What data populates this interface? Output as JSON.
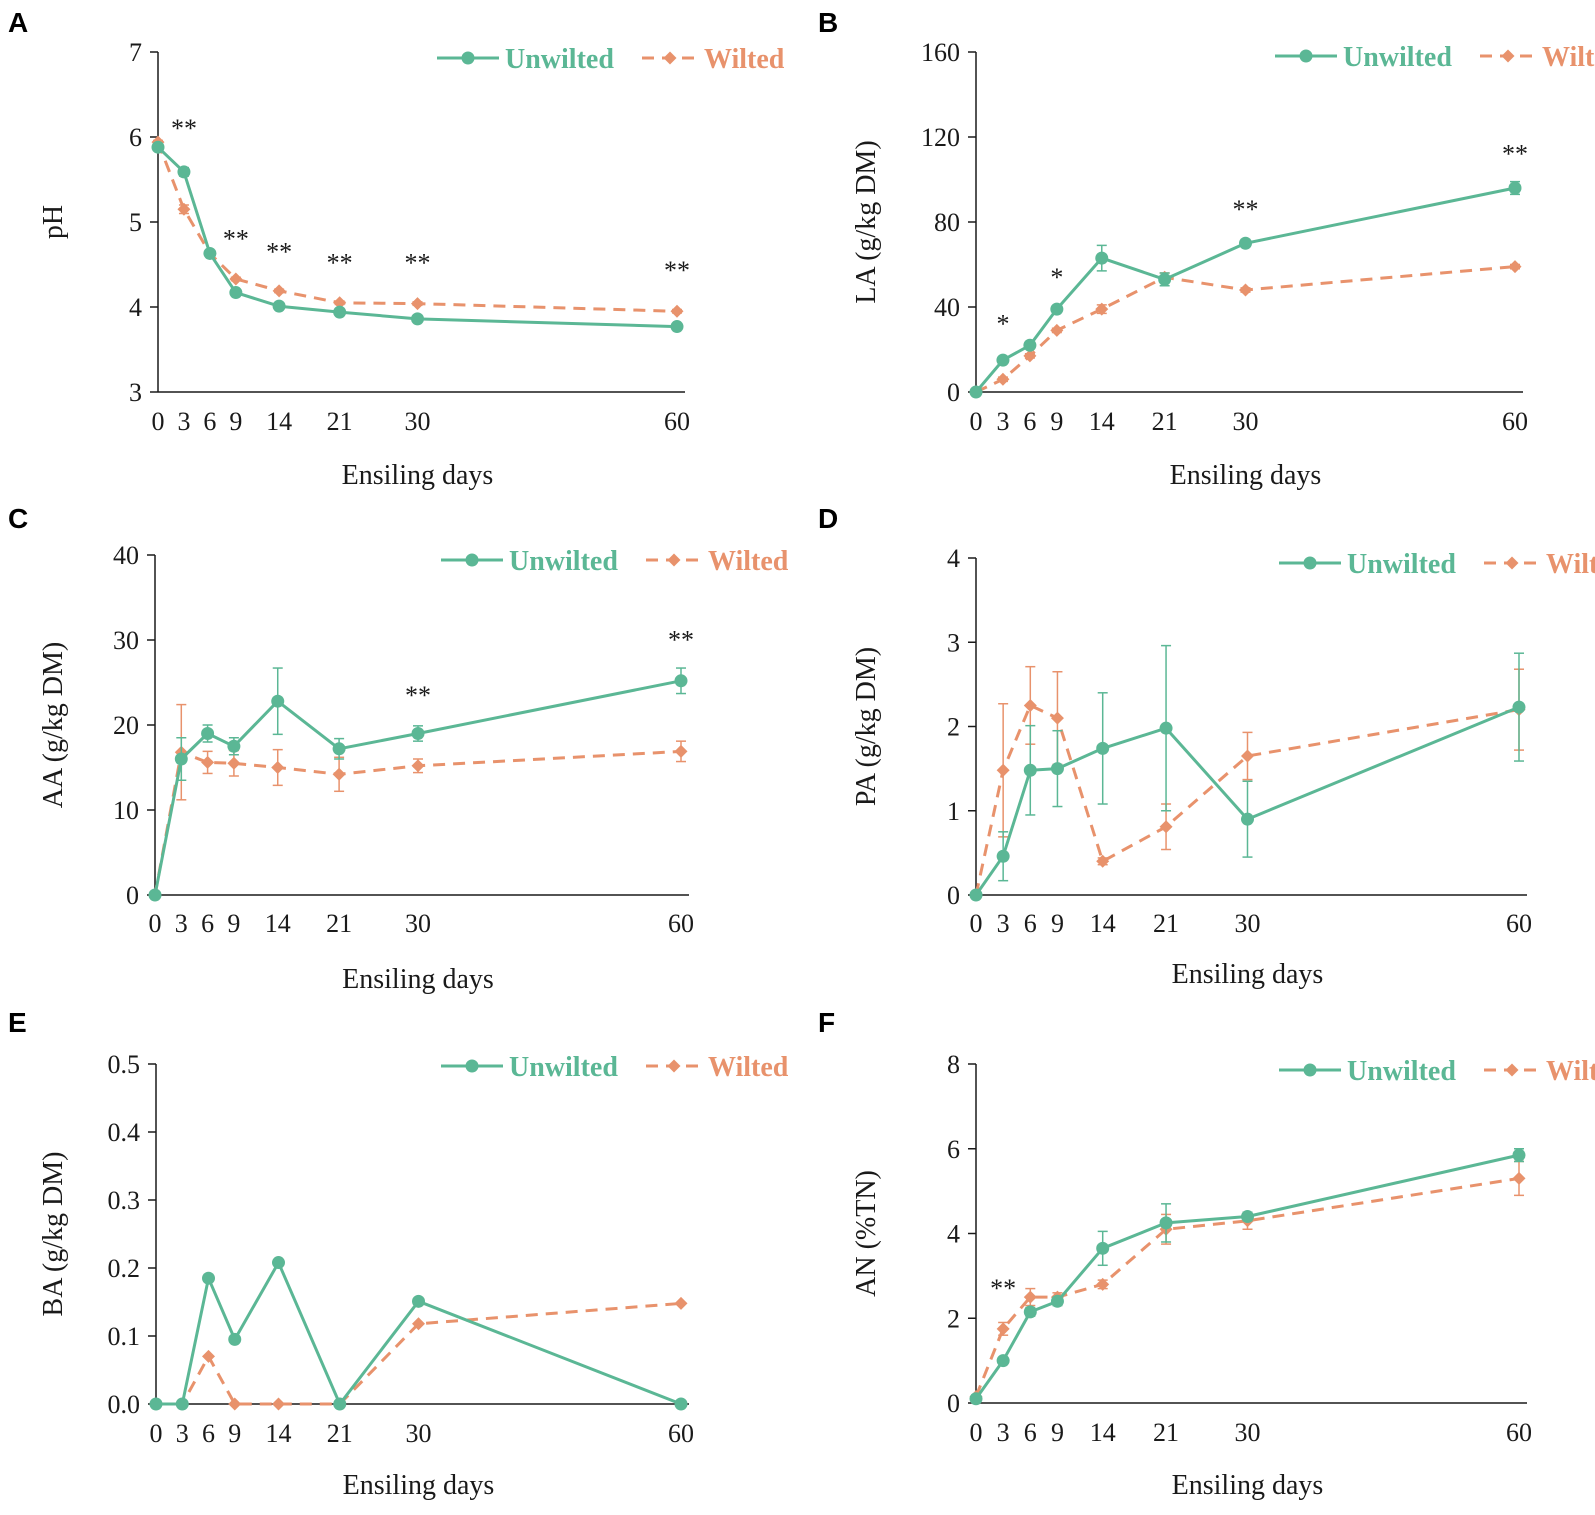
{
  "colors": {
    "unwilted": "#5BB795",
    "wilted": "#E8926C",
    "axis": "#1a1a1a"
  },
  "legend": {
    "unwilted": "Unwilted",
    "wilted": "Wilted"
  },
  "panels": [
    {
      "letter": "A",
      "chart_data": {
        "type": "line",
        "title": "",
        "xlabel": "Ensiling days",
        "ylabel": "pH",
        "x": [
          0,
          3,
          6,
          9,
          14,
          21,
          30,
          60
        ],
        "xticks": [
          "0",
          "3",
          "6",
          "9",
          "14",
          "21",
          "30",
          "60"
        ],
        "ylim": [
          3,
          7
        ],
        "yticks": [
          "3",
          "4",
          "5",
          "6",
          "7"
        ],
        "legend_position": "top-right",
        "series": [
          {
            "name": "Unwilted",
            "style": "solid",
            "marker": "circle",
            "values": [
              5.88,
              5.59,
              4.63,
              4.17,
              4.01,
              3.94,
              3.86,
              3.77
            ],
            "errors": [
              0.02,
              0.05,
              0.02,
              0.02,
              0.02,
              0.02,
              0.02,
              0.02
            ]
          },
          {
            "name": "Wilted",
            "style": "dashed",
            "marker": "diamond",
            "values": [
              5.94,
              5.15,
              4.63,
              4.33,
              4.19,
              4.05,
              4.04,
              3.95
            ],
            "errors": [
              0.02,
              0.05,
              0.02,
              0.02,
              0.02,
              0.02,
              0.02,
              0.02
            ]
          }
        ],
        "annotations": [
          {
            "x": 3,
            "y": 6.0,
            "text": "**"
          },
          {
            "x": 9,
            "y": 4.7,
            "text": "**"
          },
          {
            "x": 14,
            "y": 4.55,
            "text": "**"
          },
          {
            "x": 21,
            "y": 4.42,
            "text": "**"
          },
          {
            "x": 30,
            "y": 4.42,
            "text": "**"
          },
          {
            "x": 60,
            "y": 4.33,
            "text": "**"
          }
        ]
      }
    },
    {
      "letter": "B",
      "chart_data": {
        "type": "line",
        "title": "",
        "xlabel": "Ensiling days",
        "ylabel": "LA (g/kg DM)",
        "x": [
          0,
          3,
          6,
          9,
          14,
          21,
          30,
          60
        ],
        "xticks": [
          "0",
          "3",
          "6",
          "9",
          "14",
          "21",
          "30",
          "60"
        ],
        "ylim": [
          0,
          160
        ],
        "yticks": [
          "0",
          "40",
          "80",
          "120",
          "160"
        ],
        "legend_position": "top-right",
        "series": [
          {
            "name": "Unwilted",
            "style": "solid",
            "marker": "circle",
            "values": [
              0,
              15,
              22,
              39,
              63,
              53,
              70,
              96
            ],
            "errors": [
              0,
              1,
              1,
              1.5,
              6,
              3,
              1,
              3
            ]
          },
          {
            "name": "Wilted",
            "style": "dashed",
            "marker": "diamond",
            "values": [
              0,
              6,
              17,
              29,
              39,
              54,
              48,
              59
            ],
            "errors": [
              0,
              1,
              1,
              1,
              2,
              2,
              1,
              1
            ]
          }
        ],
        "annotations": [
          {
            "x": 3,
            "y": 28,
            "text": "*"
          },
          {
            "x": 9,
            "y": 50,
            "text": "*"
          },
          {
            "x": 30,
            "y": 82,
            "text": "**"
          },
          {
            "x": 60,
            "y": 108,
            "text": "**"
          }
        ]
      }
    },
    {
      "letter": "C",
      "chart_data": {
        "type": "line",
        "title": "",
        "xlabel": "Ensiling days",
        "ylabel": "AA (g/kg DM)",
        "x": [
          0,
          3,
          6,
          9,
          14,
          21,
          30,
          60
        ],
        "xticks": [
          "0",
          "3",
          "6",
          "9",
          "14",
          "21",
          "30",
          "60"
        ],
        "ylim": [
          0,
          40
        ],
        "yticks": [
          "0",
          "10",
          "20",
          "30",
          "40"
        ],
        "legend_position": "top-right",
        "series": [
          {
            "name": "Unwilted",
            "style": "solid",
            "marker": "circle",
            "values": [
              0,
              16.0,
              19.0,
              17.5,
              22.8,
              17.2,
              19.0,
              25.2
            ],
            "errors": [
              0,
              2.5,
              1.0,
              1.0,
              3.9,
              1.2,
              0.9,
              1.5
            ]
          },
          {
            "name": "Wilted",
            "style": "dashed",
            "marker": "diamond",
            "values": [
              0,
              16.8,
              15.6,
              15.5,
              15.0,
              14.2,
              15.2,
              16.9
            ],
            "errors": [
              0,
              5.6,
              1.3,
              1.5,
              2.1,
              2.0,
              0.8,
              1.2
            ]
          }
        ],
        "annotations": [
          {
            "x": 30,
            "y": 22.5,
            "text": "**"
          },
          {
            "x": 60,
            "y": 29.0,
            "text": "**"
          }
        ]
      }
    },
    {
      "letter": "D",
      "chart_data": {
        "type": "line",
        "title": "",
        "xlabel": "Ensiling days",
        "ylabel": "PA (g/kg DM)",
        "x": [
          0,
          3,
          6,
          9,
          14,
          21,
          30,
          60
        ],
        "xticks": [
          "0",
          "3",
          "6",
          "9",
          "14",
          "21",
          "30",
          "60"
        ],
        "ylim": [
          0,
          4
        ],
        "yticks": [
          "0",
          "1",
          "2",
          "3",
          "4"
        ],
        "legend_position": "top-right",
        "series": [
          {
            "name": "Unwilted",
            "style": "solid",
            "marker": "circle",
            "values": [
              0,
              0.46,
              1.48,
              1.5,
              1.74,
              1.98,
              0.9,
              2.23
            ],
            "errors": [
              0,
              0.29,
              0.53,
              0.45,
              0.66,
              0.98,
              0.45,
              0.64
            ]
          },
          {
            "name": "Wilted",
            "style": "dashed",
            "marker": "diamond",
            "values": [
              0,
              1.48,
              2.25,
              2.1,
              0.4,
              0.81,
              1.65,
              2.2
            ],
            "errors": [
              0,
              0.79,
              0.46,
              0.55,
              0.04,
              0.27,
              0.28,
              0.48
            ]
          }
        ],
        "annotations": []
      }
    },
    {
      "letter": "E",
      "chart_data": {
        "type": "line",
        "title": "",
        "xlabel": "Ensiling days",
        "ylabel": "BA (g/kg DM)",
        "x": [
          0,
          3,
          6,
          9,
          14,
          21,
          30,
          60
        ],
        "xticks": [
          "0",
          "3",
          "6",
          "9",
          "14",
          "21",
          "30",
          "60"
        ],
        "ylim": [
          0,
          0.5
        ],
        "yticks": [
          "0.0",
          "0.1",
          "0.2",
          "0.3",
          "0.4",
          "0.5"
        ],
        "legend_position": "top-right",
        "series": [
          {
            "name": "Unwilted",
            "style": "solid",
            "marker": "circle",
            "values": [
              0,
              0,
              0.185,
              0.095,
              0.208,
              0,
              0.151,
              0
            ],
            "errors": [
              0,
              0,
              0,
              0,
              0,
              0,
              0,
              0
            ]
          },
          {
            "name": "Wilted",
            "style": "dashed",
            "marker": "diamond",
            "values": [
              0,
              0,
              0.07,
              0,
              0,
              0,
              0.118,
              0.148
            ],
            "errors": [
              0,
              0,
              0,
              0,
              0,
              0,
              0,
              0
            ]
          }
        ],
        "annotations": []
      }
    },
    {
      "letter": "F",
      "chart_data": {
        "type": "line",
        "title": "",
        "xlabel": "Ensiling days",
        "ylabel": "AN (%TN)",
        "x": [
          0,
          3,
          6,
          9,
          14,
          21,
          30,
          60
        ],
        "xticks": [
          "0",
          "3",
          "6",
          "9",
          "14",
          "21",
          "30",
          "60"
        ],
        "ylim": [
          0,
          8
        ],
        "yticks": [
          "0",
          "2",
          "4",
          "6",
          "8"
        ],
        "legend_position": "top-right",
        "series": [
          {
            "name": "Unwilted",
            "style": "solid",
            "marker": "circle",
            "values": [
              0.1,
              1.0,
              2.15,
              2.4,
              3.65,
              4.25,
              4.4,
              5.85
            ],
            "errors": [
              0.02,
              0.05,
              0.1,
              0.1,
              0.4,
              0.45,
              0.1,
              0.15
            ]
          },
          {
            "name": "Wilted",
            "style": "dashed",
            "marker": "diamond",
            "values": [
              0.15,
              1.75,
              2.5,
              2.5,
              2.8,
              4.1,
              4.3,
              5.3
            ],
            "errors": [
              0.02,
              0.15,
              0.2,
              0.1,
              0.1,
              0.35,
              0.2,
              0.4
            ]
          }
        ],
        "annotations": [
          {
            "x": 3,
            "y": 2.5,
            "text": "**"
          }
        ]
      }
    }
  ]
}
